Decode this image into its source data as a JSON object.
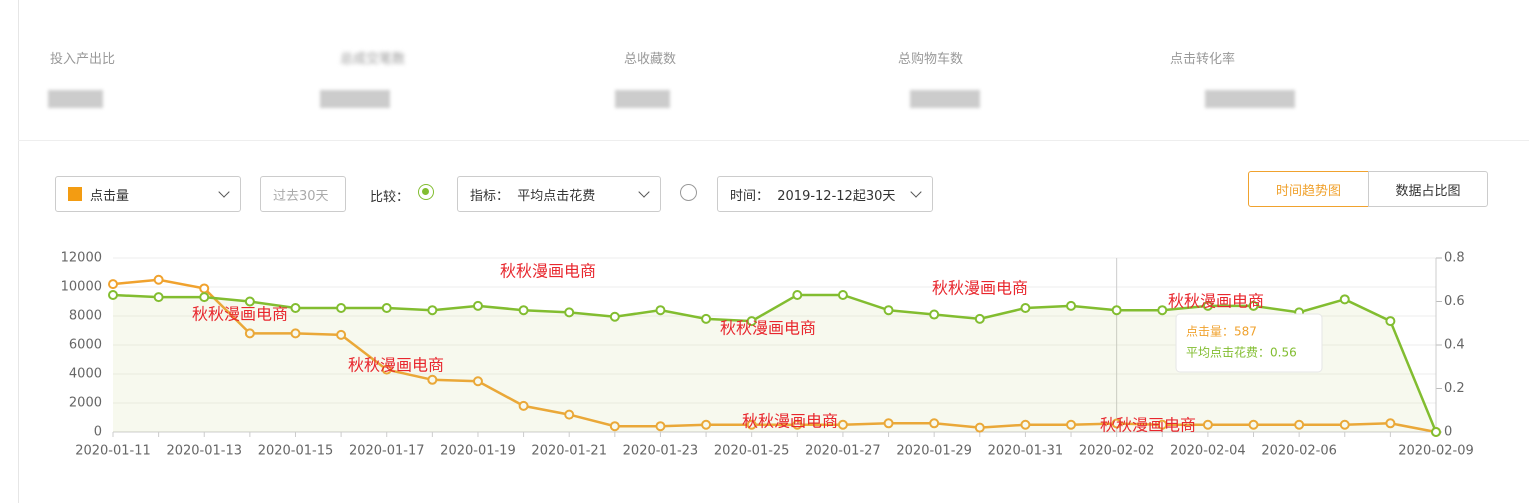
{
  "metrics": [
    {
      "label": "投入产出比"
    },
    {
      "label": "总成交笔数"
    },
    {
      "label": "总收藏数"
    },
    {
      "label": "总购物车数"
    },
    {
      "label": "点击转化率"
    }
  ],
  "controls": {
    "metric_select": "点击量",
    "period": "过去30天",
    "compare_label": "比较：",
    "indicator_select": "指标：  平均点击花费",
    "time_select": "时间：  2019-12-12起30天",
    "view_buttons": [
      "时间趋势图",
      "数据占比图"
    ]
  },
  "chart_data": {
    "type": "line",
    "categories": [
      "2020-01-11",
      null,
      "2020-01-13",
      null,
      "2020-01-15",
      null,
      "2020-01-17",
      null,
      "2020-01-19",
      null,
      "2020-01-21",
      null,
      "2020-01-23",
      null,
      "2020-01-25",
      null,
      "2020-01-27",
      null,
      "2020-01-29",
      null,
      "2020-01-31",
      null,
      "2020-02-02",
      null,
      "2020-02-04",
      null,
      "2020-02-06",
      null,
      null,
      "2020-02-09"
    ],
    "series": [
      {
        "name": "点击量",
        "color": "#f0a22e",
        "values": [
          10200,
          10500,
          9900,
          6800,
          6800,
          6700,
          4300,
          3600,
          3500,
          1800,
          1200,
          400,
          400,
          500,
          500,
          500,
          500,
          600,
          600,
          300,
          500,
          500,
          587,
          500,
          500,
          500,
          500,
          500,
          600,
          0
        ]
      },
      {
        "name": "平均点击花费",
        "color": "#82bd30",
        "axis": "y2",
        "values": [
          0.63,
          0.62,
          0.62,
          0.6,
          0.57,
          0.57,
          0.57,
          0.56,
          0.58,
          0.56,
          0.55,
          0.53,
          0.56,
          0.52,
          0.51,
          0.63,
          0.63,
          0.56,
          0.54,
          0.52,
          0.57,
          0.58,
          0.56,
          0.56,
          0.58,
          0.58,
          0.55,
          0.61,
          0.51,
          0
        ]
      }
    ],
    "ylim": [
      0,
      12000
    ],
    "yticks": [
      0,
      2000,
      4000,
      6000,
      8000,
      10000,
      12000
    ],
    "y2lim": [
      0,
      0.8
    ],
    "y2ticks": [
      0,
      0.2,
      0.4,
      0.6,
      0.8
    ],
    "grid": true,
    "tooltip": {
      "index": 22,
      "lines": [
        "点击量：587",
        "平均点击花费：0.56"
      ]
    },
    "watermarks": [
      "秋秋漫画电商",
      "秋秋漫画电商",
      "秋秋漫画电商",
      "秋秋漫画电商",
      "秋秋漫画电商",
      "秋秋漫画电商",
      "秋秋漫画电商",
      "秋秋漫画电商"
    ]
  }
}
